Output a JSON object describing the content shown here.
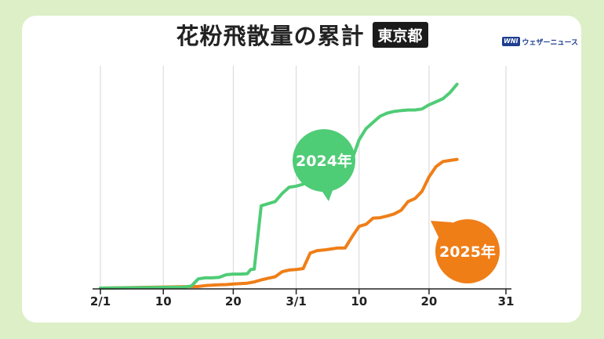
{
  "page": {
    "title": "花粉飛散量の累計",
    "region_badge": "東京都",
    "brand": {
      "logo": "WNI",
      "name": "ウェザーニュース",
      "logo_icon": "wni-logo-icon"
    }
  },
  "chart_data": {
    "type": "line",
    "title": "花粉飛散量の累計",
    "subtitle": "東京都",
    "x_domain": [
      1,
      59
    ],
    "y_domain": [
      0,
      1000
    ],
    "grid": "vertical",
    "x_ticks": [
      {
        "x": 1,
        "label": "2/1"
      },
      {
        "x": 10,
        "label": "10"
      },
      {
        "x": 20,
        "label": "20"
      },
      {
        "x": 29,
        "label": "3/1"
      },
      {
        "x": 38,
        "label": "10"
      },
      {
        "x": 48,
        "label": "20"
      },
      {
        "x": 59,
        "label": "31"
      }
    ],
    "series": [
      {
        "name": "2024年",
        "color": "#4fcc76",
        "callout": "2024年",
        "points": [
          [
            1,
            0
          ],
          [
            13,
            5
          ],
          [
            14,
            10
          ],
          [
            15,
            45
          ],
          [
            16,
            50
          ],
          [
            17,
            50
          ],
          [
            18,
            52
          ],
          [
            19,
            65
          ],
          [
            20,
            68
          ],
          [
            21,
            68
          ],
          [
            22,
            70
          ],
          [
            22.5,
            90
          ],
          [
            23,
            92
          ],
          [
            24,
            400
          ],
          [
            25,
            410
          ],
          [
            26,
            420
          ],
          [
            27,
            460
          ],
          [
            28,
            490
          ],
          [
            29,
            495
          ],
          [
            30,
            505
          ],
          [
            31,
            520
          ],
          [
            32,
            525
          ],
          [
            33,
            560
          ],
          [
            34,
            570
          ],
          [
            35,
            575
          ],
          [
            36,
            610
          ],
          [
            37,
            625
          ],
          [
            38,
            720
          ],
          [
            39,
            775
          ],
          [
            40,
            805
          ],
          [
            41,
            835
          ],
          [
            42,
            850
          ],
          [
            43,
            858
          ],
          [
            44,
            862
          ],
          [
            45,
            865
          ],
          [
            46,
            865
          ],
          [
            47,
            870
          ],
          [
            48,
            890
          ],
          [
            49,
            905
          ],
          [
            50,
            920
          ],
          [
            51,
            950
          ],
          [
            52,
            990
          ]
        ]
      },
      {
        "name": "2025年",
        "color": "#ef7e17",
        "callout": "2025年",
        "points": [
          [
            1,
            0
          ],
          [
            15,
            8
          ],
          [
            16,
            12
          ],
          [
            17,
            14
          ],
          [
            18,
            16
          ],
          [
            19,
            17
          ],
          [
            20,
            20
          ],
          [
            21,
            22
          ],
          [
            22,
            24
          ],
          [
            23,
            30
          ],
          [
            24,
            40
          ],
          [
            25,
            48
          ],
          [
            26,
            55
          ],
          [
            27,
            80
          ],
          [
            28,
            88
          ],
          [
            29,
            90
          ],
          [
            30,
            95
          ],
          [
            31,
            170
          ],
          [
            32,
            182
          ],
          [
            33,
            185
          ],
          [
            34,
            190
          ],
          [
            35,
            195
          ],
          [
            36,
            195
          ],
          [
            37,
            250
          ],
          [
            38,
            300
          ],
          [
            39,
            310
          ],
          [
            40,
            340
          ],
          [
            41,
            342
          ],
          [
            42,
            350
          ],
          [
            43,
            360
          ],
          [
            44,
            378
          ],
          [
            45,
            420
          ],
          [
            46,
            435
          ],
          [
            47,
            470
          ],
          [
            48,
            540
          ],
          [
            49,
            590
          ],
          [
            50,
            615
          ],
          [
            51,
            620
          ],
          [
            52,
            625
          ]
        ]
      }
    ]
  }
}
